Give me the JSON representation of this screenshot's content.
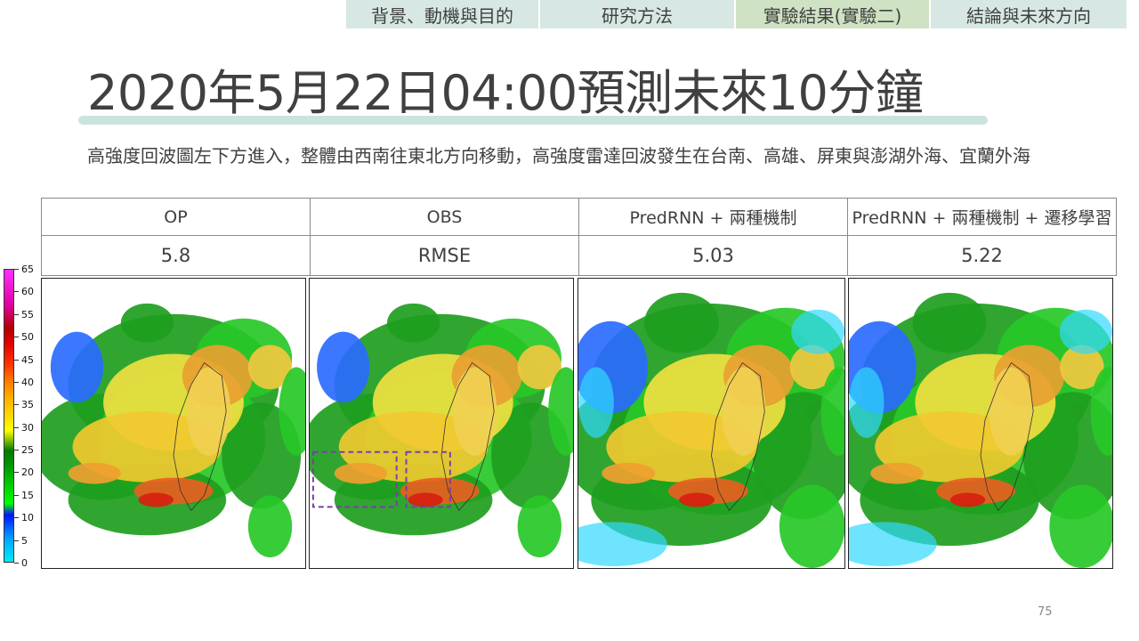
{
  "nav": {
    "tabs": [
      {
        "label": "背景、動機與目的",
        "active": false
      },
      {
        "label": "研究方法",
        "active": false
      },
      {
        "label": "實驗結果(實驗二)",
        "active": true
      },
      {
        "label": "結論與未來方向",
        "active": false
      }
    ]
  },
  "title": "2020年5月22日04:00預測未來10分鐘",
  "description": "高強度回波圖左下方進入，整體由西南往東北方向移動，高強度雷達回波發生在台南、高雄、屏東與澎湖外海、宜蘭外海",
  "table": {
    "headers": [
      "OP",
      "OBS",
      "PredRNN + 兩種機制",
      "PredRNN + 兩種機制 + 遷移學習"
    ],
    "values": [
      "5.8",
      "RMSE",
      "5.03",
      "5.22"
    ]
  },
  "colorbar": {
    "labels": [
      "65",
      "60",
      "55",
      "50",
      "45",
      "40",
      "35",
      "30",
      "25",
      "20",
      "15",
      "10",
      "5",
      "0"
    ],
    "accent_colors": [
      "#00e8ff",
      "#0010ff",
      "#00ff00",
      "#009600",
      "#ffff00",
      "#ffa800",
      "#ff3000",
      "#b00000",
      "#ff30ff"
    ]
  },
  "panels": [
    {
      "name": "op",
      "highlight_box": false
    },
    {
      "name": "obs",
      "highlight_box": true
    },
    {
      "name": "predrnn",
      "highlight_box": false
    },
    {
      "name": "predrnn-transfer",
      "highlight_box": false
    }
  ],
  "page_number": "75",
  "colors": {
    "nav_tab": "#d7e8e4",
    "nav_tab_active": "#cfe2c3",
    "title_bar": "#cbe3df",
    "highlight_box": "#7a3ea8"
  }
}
